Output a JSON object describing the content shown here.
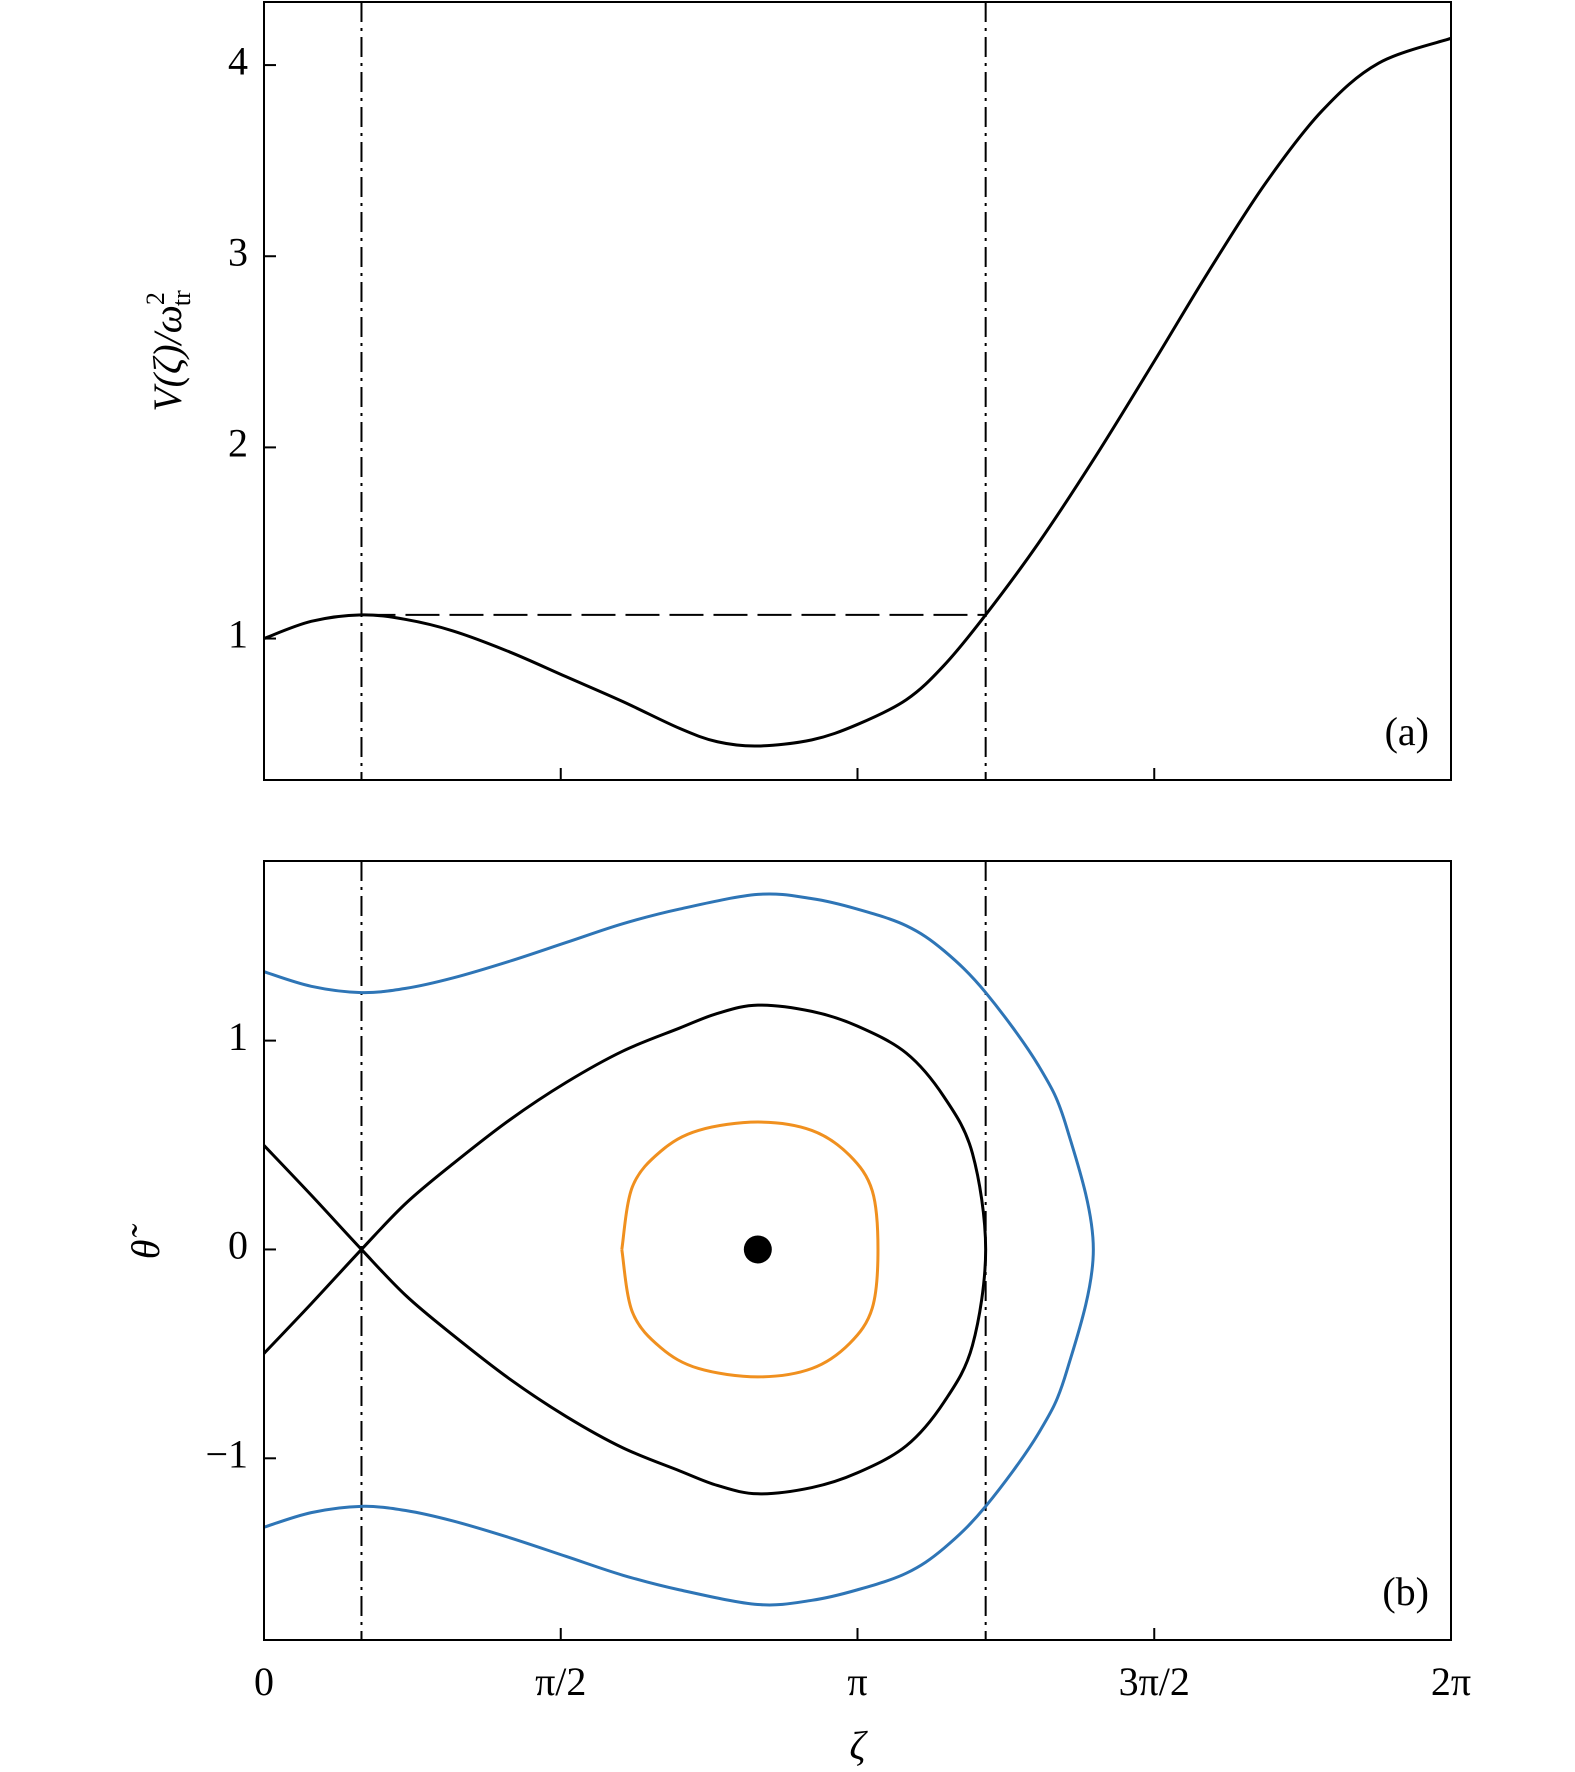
{
  "chart_data": [
    {
      "type": "line",
      "panel_label": "(a)",
      "ylabel": {
        "main": "V(ζ)/ω",
        "sup": "2",
        "sub": "tr"
      },
      "xlim": [
        0,
        6.2832
      ],
      "ylim": [
        0.26,
        4.33
      ],
      "xticks": [
        0,
        1.5708,
        3.1416,
        4.7124,
        6.2832
      ],
      "xtick_labels": false,
      "yticks": [
        1,
        2,
        3,
        4
      ],
      "vlines": [
        0.516,
        3.82
      ],
      "hline": {
        "y": 1.124,
        "x": [
          0.516,
          3.82
        ]
      },
      "series": [
        {
          "color": "#000000",
          "x": [
            0,
            0.25,
            0.516,
            0.75,
            1.0,
            1.3,
            1.6,
            1.9,
            2.2,
            2.4,
            2.614,
            2.9,
            3.14,
            3.4,
            3.6,
            3.82,
            4.1,
            4.4,
            4.712,
            5.0,
            5.3,
            5.6,
            5.9,
            6.283
          ],
          "values": [
            1.0,
            1.09,
            1.124,
            1.1,
            1.04,
            0.93,
            0.8,
            0.67,
            0.53,
            0.46,
            0.438,
            0.47,
            0.55,
            0.68,
            0.86,
            1.124,
            1.5,
            1.95,
            2.45,
            2.92,
            3.38,
            3.76,
            4.01,
            4.14
          ]
        }
      ]
    },
    {
      "type": "line",
      "panel_label": "(b)",
      "ylabel": "θ̃",
      "xlabel": "ζ",
      "xlim": [
        0,
        6.2832
      ],
      "ylim": [
        -1.87,
        1.86
      ],
      "xticks": [
        0,
        {
          "value": 1.5708,
          "label": "π/2"
        },
        {
          "value": 3.1416,
          "label": "π"
        },
        {
          "value": 4.7124,
          "label": "3π/2"
        },
        {
          "value": 6.2832,
          "label": "2π"
        }
      ],
      "xtick_labels": true,
      "yticks": [
        {
          "value": -1,
          "label": "−1"
        },
        0,
        1
      ],
      "vlines": [
        0.516,
        3.82
      ],
      "series": [
        {
          "color": "#000000",
          "x": [
            0,
            0.25,
            0.516,
            0.75,
            1.0,
            1.3,
            1.6,
            1.9,
            2.2,
            2.4,
            2.614,
            2.9,
            3.14,
            3.4,
            3.6,
            3.75,
            3.82,
            3.75,
            3.6,
            3.4,
            3.14,
            2.9,
            2.614,
            2.4,
            2.2,
            1.9,
            1.6,
            1.3,
            1.0,
            0.75,
            0.516,
            0.25,
            0
          ],
          "values": [
            0.498,
            0.26,
            0,
            -0.22,
            -0.41,
            -0.62,
            -0.8,
            -0.95,
            -1.06,
            -1.13,
            -1.17,
            -1.14,
            -1.07,
            -0.94,
            -0.73,
            -0.46,
            0,
            0.46,
            0.73,
            0.94,
            1.07,
            1.14,
            1.17,
            1.13,
            1.06,
            0.95,
            0.8,
            0.62,
            0.41,
            0.22,
            0,
            -0.26,
            -0.498
          ]
        },
        {
          "color": "#2e75b6",
          "x": [
            0,
            0.25,
            0.516,
            0.75,
            1.0,
            1.3,
            1.6,
            1.9,
            2.2,
            2.614,
            2.9,
            3.14,
            3.4,
            3.6,
            3.82,
            4.1,
            4.25,
            4.39,
            4.25,
            4.1,
            3.82,
            3.6,
            3.4,
            3.14,
            2.9,
            2.614,
            2.2,
            1.9,
            1.6,
            1.3,
            1.0,
            0.75,
            0.516,
            0.25,
            0
          ],
          "values": [
            1.33,
            1.26,
            1.23,
            1.25,
            1.3,
            1.38,
            1.47,
            1.56,
            1.63,
            1.7,
            1.68,
            1.63,
            1.55,
            1.43,
            1.23,
            0.88,
            0.58,
            0,
            -0.58,
            -0.88,
            -1.23,
            -1.43,
            -1.55,
            -1.63,
            -1.68,
            -1.7,
            -1.63,
            -1.56,
            -1.47,
            -1.38,
            -1.3,
            -1.25,
            -1.23,
            -1.26,
            -1.33
          ]
        },
        {
          "color": "#f0901f",
          "x": [
            1.894,
            1.95,
            2.1,
            2.3,
            2.614,
            2.9,
            3.1,
            3.22,
            3.25,
            3.22,
            3.1,
            2.9,
            2.614,
            2.3,
            2.1,
            1.95,
            1.894
          ],
          "values": [
            0,
            0.3,
            0.47,
            0.57,
            0.61,
            0.57,
            0.45,
            0.28,
            0,
            -0.28,
            -0.45,
            -0.57,
            -0.61,
            -0.57,
            -0.47,
            -0.3,
            0
          ]
        },
        {
          "color": "#000000",
          "marker": true,
          "x": [
            2.614
          ],
          "values": [
            0
          ]
        }
      ]
    }
  ]
}
